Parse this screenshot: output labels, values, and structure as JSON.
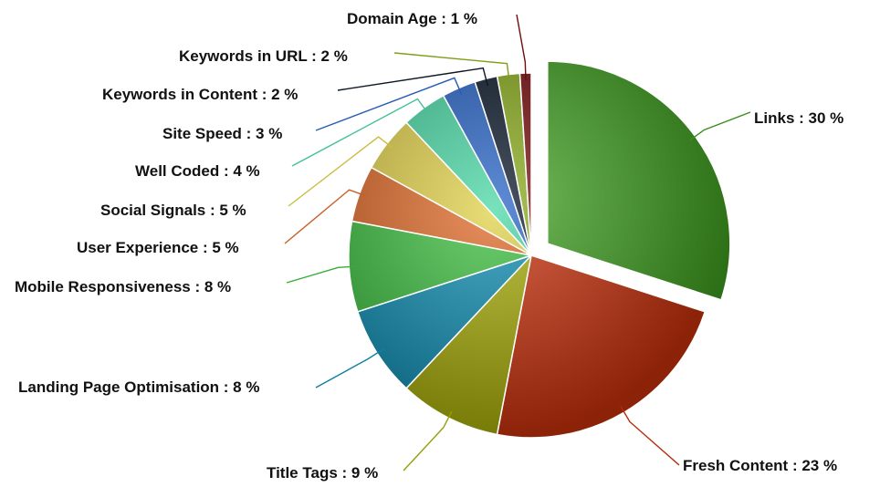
{
  "chart_data": {
    "type": "pie",
    "title": "",
    "slices": [
      {
        "label": "Links : 30 %",
        "name": "Links",
        "value": 30,
        "color": "#3f9f20",
        "exploded": true
      },
      {
        "label": "Fresh Content : 23 %",
        "name": "Fresh Content",
        "value": 23,
        "color": "#c8300c",
        "exploded": false
      },
      {
        "label": "Title Tags : 9 %",
        "name": "Title Tags",
        "value": 9,
        "color": "#a8ae08",
        "exploded": false
      },
      {
        "label": "Landing Page Optimisation : 8 %",
        "name": "Landing Page Optimisation",
        "value": 8,
        "color": "#0f8fb4",
        "exploded": false
      },
      {
        "label": "Mobile Responsiveness : 8 %",
        "name": "Mobile Responsiveness",
        "value": 8,
        "color": "#3ec040",
        "exploded": false
      },
      {
        "label": "User Experience : 5 %",
        "name": "User Experience",
        "value": 5,
        "color": "#e06a28",
        "exploded": false
      },
      {
        "label": "Social Signals : 5 %",
        "name": "Social Signals",
        "value": 5,
        "color": "#e2d24a",
        "exploded": false
      },
      {
        "label": "Well Coded : 4 %",
        "name": "Well Coded",
        "value": 4,
        "color": "#4ad8a6",
        "exploded": false
      },
      {
        "label": "Site Speed : 3 %",
        "name": "Site Speed",
        "value": 3,
        "color": "#2a66c8",
        "exploded": false
      },
      {
        "label": "Keywords in Content : 2 %",
        "name": "Keywords in Content",
        "value": 2,
        "color": "#0d1a2c",
        "exploded": false
      },
      {
        "label": "Keywords in URL : 2 %",
        "name": "Keywords in URL",
        "value": 2,
        "color": "#8cae1e",
        "exploded": false
      },
      {
        "label": "Domain Age : 1 %",
        "name": "Domain Age",
        "value": 1,
        "color": "#7a0e0e",
        "exploded": false
      }
    ],
    "legend": "none",
    "label_style": "outside with leader lines"
  }
}
